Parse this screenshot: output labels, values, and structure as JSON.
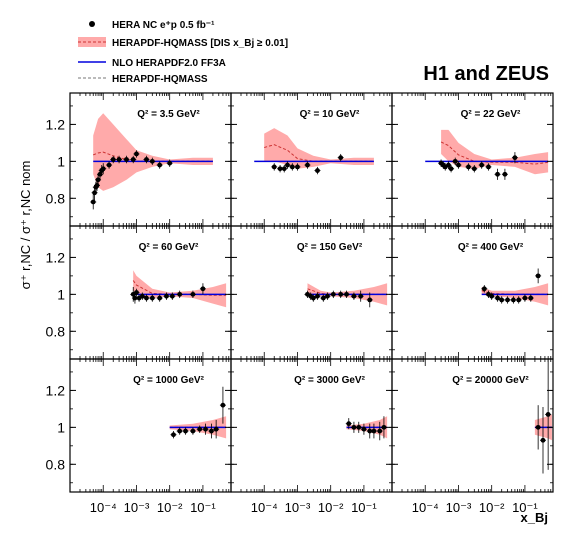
{
  "legend": {
    "entries": [
      {
        "label": "HERA NC e⁺p 0.5 fb⁻¹",
        "symbol": "point"
      },
      {
        "label": "HERAPDF-HQMASS [DIS x_Bj ≥ 0.01]",
        "symbol": "band"
      },
      {
        "label": "NLO HERAPDF2.0 FF3A",
        "symbol": "line-blue"
      },
      {
        "label": "HERAPDF-HQMASS",
        "symbol": "line-dashed"
      }
    ]
  },
  "experiment_label": "H1 and ZEUS",
  "colors": {
    "band": "#ffaaaa",
    "band_dark": "#ff7777",
    "nlo_line": "#0000dd",
    "hqmass_line": "#cc3333",
    "data": "#000000"
  },
  "chart_data": {
    "type": "scatter",
    "ylabel": "σ⁺ r,NC / σ⁺ r,NC nom",
    "xlabel": "x_Bj",
    "xscale": "log",
    "xlim": [
      1e-05,
      0.7
    ],
    "ylim": [
      0.65,
      1.37
    ],
    "yticks": [
      0.8,
      1.0,
      1.2
    ],
    "ytick_labels": [
      "0.8",
      "1",
      "1.2"
    ],
    "xticks": [
      0.0001,
      0.001,
      0.01,
      0.1
    ],
    "xtick_labels": [
      "10⁻⁴",
      "10⁻³",
      "10⁻²",
      "10⁻¹"
    ],
    "panels": [
      {
        "q2_label": "Q² = 3.5 GeV²",
        "x_min": 5e-05,
        "x_max": 0.2,
        "has_band": true,
        "band": [
          [
            5e-05,
            0.93,
            1.14
          ],
          [
            7e-05,
            0.86,
            1.23
          ],
          [
            0.0001,
            0.84,
            1.26
          ],
          [
            0.0002,
            0.86,
            1.2
          ],
          [
            0.0005,
            0.9,
            1.12
          ],
          [
            0.001,
            0.94,
            1.06
          ],
          [
            0.003,
            0.97,
            1.03
          ],
          [
            0.01,
            0.99,
            1.01
          ],
          [
            0.05,
            0.98,
            1.02
          ],
          [
            0.2,
            0.98,
            1.02
          ]
        ],
        "points": [
          [
            5e-05,
            0.78,
            0.04
          ],
          [
            5.5e-05,
            0.83,
            0.04
          ],
          [
            6e-05,
            0.86,
            0.03
          ],
          [
            6.5e-05,
            0.87,
            0.03
          ],
          [
            7e-05,
            0.9,
            0.03
          ],
          [
            8e-05,
            0.93,
            0.03
          ],
          [
            9e-05,
            0.95,
            0.03
          ],
          [
            0.0001,
            0.96,
            0.03
          ],
          [
            0.00015,
            0.98,
            0.02
          ],
          [
            0.0002,
            1.01,
            0.02
          ],
          [
            0.0003,
            1.01,
            0.02
          ],
          [
            0.0005,
            1.01,
            0.02
          ],
          [
            0.0008,
            1.01,
            0.02
          ],
          [
            0.001,
            1.04,
            0.02
          ],
          [
            0.002,
            1.01,
            0.02
          ],
          [
            0.003,
            1.0,
            0.02
          ],
          [
            0.005,
            0.98,
            0.02
          ],
          [
            0.01,
            0.99,
            0.02
          ]
        ]
      },
      {
        "q2_label": "Q² = 10 GeV²",
        "x_min": 5e-05,
        "x_max": 0.2,
        "has_band": true,
        "band": [
          [
            0.0001,
            1.0,
            1.15
          ],
          [
            0.0002,
            1.0,
            1.18
          ],
          [
            0.0005,
            0.98,
            1.14
          ],
          [
            0.001,
            0.96,
            1.07
          ],
          [
            0.003,
            0.97,
            1.03
          ],
          [
            0.01,
            0.99,
            1.01
          ],
          [
            0.05,
            0.98,
            1.02
          ],
          [
            0.2,
            0.98,
            1.02
          ]
        ],
        "points": [
          [
            0.0002,
            0.97,
            0.02
          ],
          [
            0.0003,
            0.96,
            0.02
          ],
          [
            0.0004,
            0.96,
            0.02
          ],
          [
            0.0005,
            0.98,
            0.02
          ],
          [
            0.0007,
            0.97,
            0.02
          ],
          [
            0.001,
            0.97,
            0.02
          ],
          [
            0.002,
            0.98,
            0.02
          ],
          [
            0.004,
            0.95,
            0.02
          ],
          [
            0.02,
            1.02,
            0.02
          ]
        ]
      },
      {
        "q2_label": "Q² = 22 GeV²",
        "x_min": 0.0001,
        "x_max": 0.5,
        "has_band": true,
        "band": [
          [
            0.0003,
            1.04,
            1.17
          ],
          [
            0.0005,
            1.0,
            1.17
          ],
          [
            0.001,
            0.97,
            1.1
          ],
          [
            0.003,
            0.96,
            1.04
          ],
          [
            0.01,
            0.98,
            1.01
          ],
          [
            0.05,
            0.97,
            1.02
          ],
          [
            0.2,
            0.93,
            1.04
          ],
          [
            0.5,
            0.94,
            1.05
          ]
        ],
        "points": [
          [
            0.0003,
            0.99,
            0.02
          ],
          [
            0.00035,
            0.98,
            0.02
          ],
          [
            0.0004,
            0.97,
            0.02
          ],
          [
            0.0005,
            0.98,
            0.02
          ],
          [
            0.0006,
            0.96,
            0.02
          ],
          [
            0.0008,
            1.0,
            0.02
          ],
          [
            0.001,
            0.98,
            0.02
          ],
          [
            0.002,
            0.97,
            0.02
          ],
          [
            0.003,
            0.96,
            0.02
          ],
          [
            0.005,
            0.98,
            0.02
          ],
          [
            0.008,
            0.97,
            0.02
          ],
          [
            0.015,
            0.93,
            0.03
          ],
          [
            0.025,
            0.93,
            0.03
          ],
          [
            0.05,
            1.02,
            0.03
          ]
        ]
      },
      {
        "q2_label": "Q² = 60 GeV²",
        "x_min": 0.0008,
        "x_max": 0.5,
        "has_band": true,
        "band": [
          [
            0.0008,
            1.02,
            1.13
          ],
          [
            0.001,
            1.0,
            1.1
          ],
          [
            0.003,
            0.98,
            1.03
          ],
          [
            0.01,
            0.99,
            1.01
          ],
          [
            0.05,
            0.98,
            1.02
          ],
          [
            0.2,
            0.95,
            1.04
          ],
          [
            0.5,
            0.93,
            1.06
          ]
        ],
        "points": [
          [
            0.0008,
            1.0,
            0.04
          ],
          [
            0.0009,
            0.98,
            0.03
          ],
          [
            0.001,
            1.01,
            0.02
          ],
          [
            0.0012,
            0.98,
            0.02
          ],
          [
            0.0015,
            0.99,
            0.02
          ],
          [
            0.002,
            0.98,
            0.02
          ],
          [
            0.003,
            0.98,
            0.02
          ],
          [
            0.005,
            0.98,
            0.02
          ],
          [
            0.008,
            0.99,
            0.02
          ],
          [
            0.012,
            0.99,
            0.02
          ],
          [
            0.02,
            1.0,
            0.02
          ],
          [
            0.05,
            1.0,
            0.02
          ],
          [
            0.1,
            1.03,
            0.03
          ]
        ]
      },
      {
        "q2_label": "Q² = 150 GeV²",
        "x_min": 0.002,
        "x_max": 0.5,
        "has_band": true,
        "band": [
          [
            0.002,
            1.0,
            1.06
          ],
          [
            0.005,
            0.99,
            1.02
          ],
          [
            0.01,
            0.99,
            1.01
          ],
          [
            0.05,
            0.98,
            1.02
          ],
          [
            0.2,
            0.96,
            1.04
          ],
          [
            0.5,
            0.94,
            1.06
          ]
        ],
        "points": [
          [
            0.002,
            1.0,
            0.02
          ],
          [
            0.0025,
            0.99,
            0.02
          ],
          [
            0.003,
            0.98,
            0.02
          ],
          [
            0.004,
            0.99,
            0.02
          ],
          [
            0.006,
            0.98,
            0.02
          ],
          [
            0.008,
            0.99,
            0.02
          ],
          [
            0.012,
            1.0,
            0.02
          ],
          [
            0.02,
            1.0,
            0.02
          ],
          [
            0.03,
            1.0,
            0.02
          ],
          [
            0.05,
            0.99,
            0.02
          ],
          [
            0.08,
            0.99,
            0.03
          ],
          [
            0.15,
            0.97,
            0.04
          ]
        ]
      },
      {
        "q2_label": "Q² = 400 GeV²",
        "x_min": 0.005,
        "x_max": 0.5,
        "has_band": true,
        "band": [
          [
            0.005,
            1.0,
            1.04
          ],
          [
            0.01,
            0.99,
            1.02
          ],
          [
            0.05,
            0.98,
            1.02
          ],
          [
            0.2,
            0.96,
            1.04
          ],
          [
            0.5,
            0.94,
            1.06
          ]
        ],
        "points": [
          [
            0.006,
            1.03,
            0.02
          ],
          [
            0.008,
            1.0,
            0.02
          ],
          [
            0.01,
            0.99,
            0.02
          ],
          [
            0.015,
            0.98,
            0.02
          ],
          [
            0.02,
            0.97,
            0.02
          ],
          [
            0.03,
            0.97,
            0.02
          ],
          [
            0.045,
            0.97,
            0.02
          ],
          [
            0.065,
            0.97,
            0.02
          ],
          [
            0.1,
            0.98,
            0.02
          ],
          [
            0.15,
            0.98,
            0.02
          ],
          [
            0.25,
            1.1,
            0.04
          ]
        ]
      },
      {
        "q2_label": "Q² = 1000 GeV²",
        "x_min": 0.01,
        "x_max": 0.5,
        "has_band": true,
        "band": [
          [
            0.01,
            0.99,
            1.01
          ],
          [
            0.05,
            0.98,
            1.02
          ],
          [
            0.2,
            0.96,
            1.04
          ],
          [
            0.5,
            0.94,
            1.06
          ]
        ],
        "points": [
          [
            0.013,
            0.96,
            0.02
          ],
          [
            0.02,
            0.98,
            0.02
          ],
          [
            0.03,
            0.98,
            0.02
          ],
          [
            0.05,
            0.98,
            0.02
          ],
          [
            0.08,
            0.99,
            0.02
          ],
          [
            0.12,
            0.99,
            0.03
          ],
          [
            0.18,
            0.98,
            0.04
          ],
          [
            0.25,
            0.99,
            0.05
          ],
          [
            0.4,
            1.12,
            0.1
          ]
        ]
      },
      {
        "q2_label": "Q² = 3000 GeV²",
        "x_min": 0.03,
        "x_max": 0.5,
        "has_band": true,
        "band": [
          [
            0.03,
            0.99,
            1.01
          ],
          [
            0.1,
            0.98,
            1.02
          ],
          [
            0.3,
            0.96,
            1.04
          ],
          [
            0.5,
            0.94,
            1.06
          ]
        ],
        "points": [
          [
            0.035,
            1.02,
            0.03
          ],
          [
            0.05,
            1.0,
            0.03
          ],
          [
            0.07,
            1.0,
            0.03
          ],
          [
            0.1,
            0.99,
            0.03
          ],
          [
            0.15,
            0.98,
            0.04
          ],
          [
            0.2,
            0.98,
            0.04
          ],
          [
            0.3,
            0.98,
            0.05
          ],
          [
            0.4,
            1.0,
            0.06
          ]
        ]
      },
      {
        "q2_label": "Q² = 20000 GeV²",
        "x_min": 0.2,
        "x_max": 0.65,
        "has_band": true,
        "band": [
          [
            0.2,
            0.96,
            1.04
          ],
          [
            0.5,
            0.94,
            1.06
          ],
          [
            0.65,
            0.93,
            1.07
          ]
        ],
        "points": [
          [
            0.25,
            1.0,
            0.12
          ],
          [
            0.35,
            0.93,
            0.18
          ],
          [
            0.5,
            1.07,
            0.3
          ]
        ]
      }
    ]
  }
}
